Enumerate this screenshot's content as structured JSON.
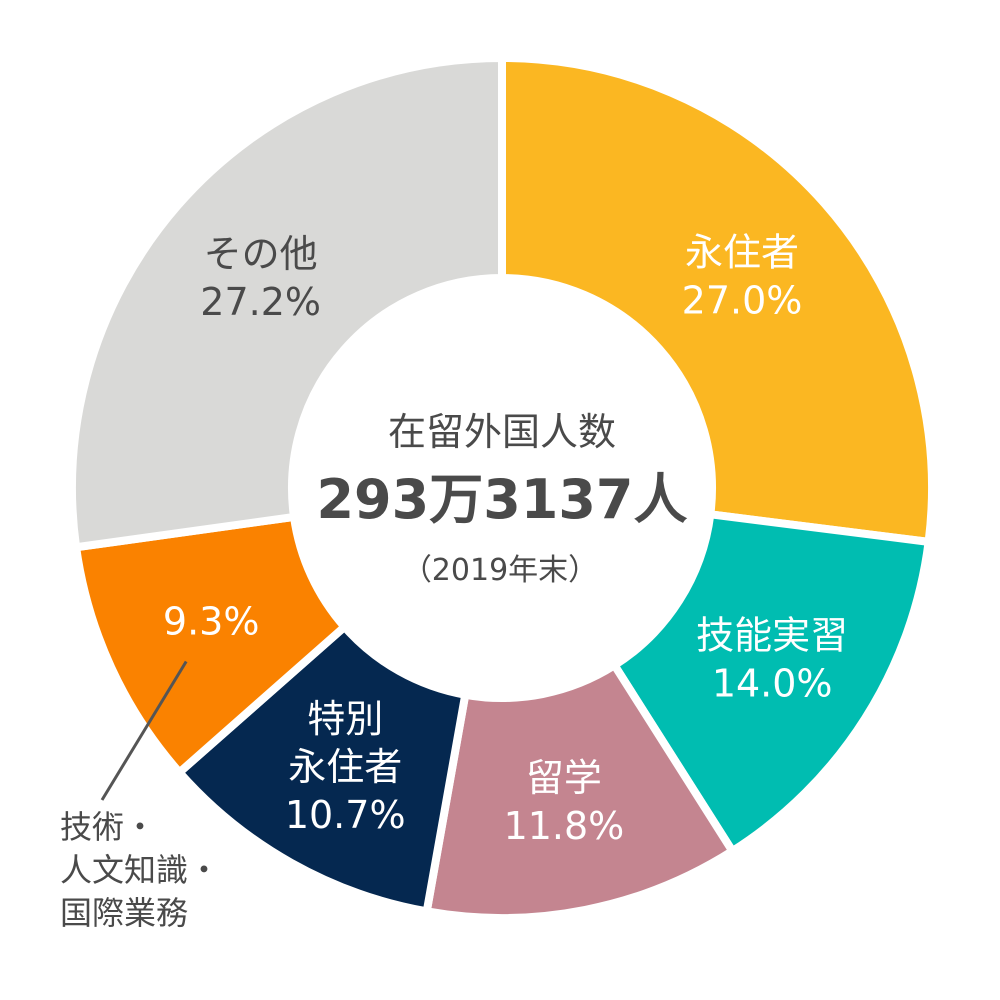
{
  "chart_data": {
    "type": "pie",
    "title": "在留外国人数",
    "total": "293万3137人",
    "note": "（2019年末）",
    "slices": [
      {
        "lines": [
          "永住者"
        ],
        "value": 27.0,
        "value_label": "27.0%",
        "color": "#FBB722",
        "text_color": "#ffffff"
      },
      {
        "lines": [
          "技能実習"
        ],
        "value": 14.0,
        "value_label": "14.0%",
        "color": "#00BDB1",
        "text_color": "#ffffff"
      },
      {
        "lines": [
          "留学"
        ],
        "value": 11.8,
        "value_label": "11.8%",
        "color": "#C48590",
        "text_color": "#ffffff"
      },
      {
        "lines": [
          "特別",
          "永住者"
        ],
        "value": 10.7,
        "value_label": "10.7%",
        "color": "#052850",
        "text_color": "#ffffff"
      },
      {
        "lines": [],
        "value": 9.3,
        "value_label": "9.3%",
        "color": "#FA8200",
        "text_color": "#ffffff",
        "outside_lines": [
          "技術・",
          "人文知識・",
          "国際業務"
        ]
      },
      {
        "lines": [
          "その他"
        ],
        "value": 27.2,
        "value_label": "27.2%",
        "color": "#D9D9D7",
        "text_color": "#4a4a4a"
      }
    ]
  }
}
